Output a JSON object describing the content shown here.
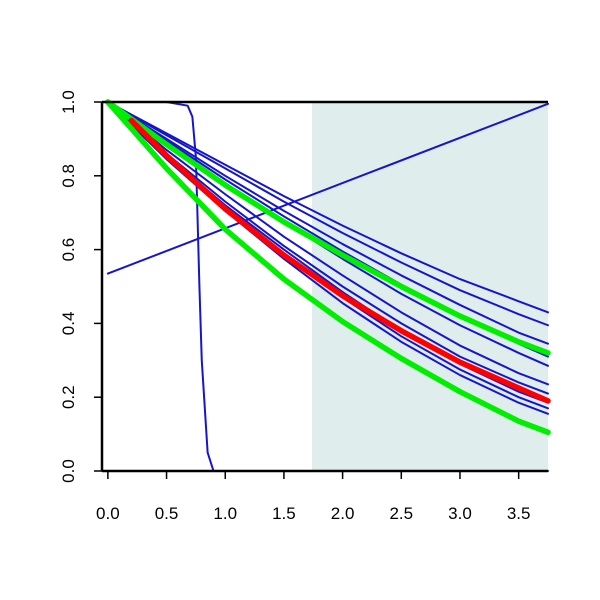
{
  "chart_data": {
    "type": "line",
    "title": "",
    "xlabel": "",
    "ylabel": "",
    "xlim": [
      -0.05,
      3.75
    ],
    "ylim": [
      0.0,
      1.0
    ],
    "x_ticks": [
      0.0,
      0.5,
      1.0,
      1.5,
      2.0,
      2.5,
      3.0,
      3.5
    ],
    "x_tick_labels": [
      "0.0",
      "0.5",
      "1.0",
      "1.5",
      "2.0",
      "2.5",
      "3.0",
      "3.5"
    ],
    "y_ticks": [
      0.0,
      0.2,
      0.4,
      0.6,
      0.8,
      1.0
    ],
    "y_tick_labels": [
      "0.0",
      "0.2",
      "0.4",
      "0.6",
      "0.8",
      "1.0"
    ],
    "grid": false,
    "shaded_region": {
      "x_from": 1.74,
      "x_to": 3.75,
      "color": "#e0eded"
    },
    "colors": {
      "blue": "#1515cc",
      "red": "#ff0000",
      "green": "#00ee00"
    },
    "series": [
      {
        "color": "blue",
        "weight": "thin",
        "x": [
          0,
          0.5,
          0.68,
          0.72,
          0.75,
          0.78,
          0.8,
          0.85,
          0.9,
          3.75
        ],
        "y": [
          1.0,
          1.0,
          0.99,
          0.96,
          0.85,
          0.5,
          0.3,
          0.05,
          0.0,
          0.0
        ]
      },
      {
        "color": "blue",
        "weight": "thin",
        "x": [
          0,
          3.75
        ],
        "y": [
          0.535,
          0.995
        ]
      },
      {
        "color": "blue",
        "weight": "thin",
        "x": [
          0,
          0.5,
          1.0,
          1.5,
          2.0,
          2.5,
          3.0,
          3.5,
          3.75
        ],
        "y": [
          1.0,
          0.915,
          0.83,
          0.745,
          0.665,
          0.59,
          0.52,
          0.46,
          0.43
        ]
      },
      {
        "color": "blue",
        "weight": "thin",
        "x": [
          0,
          0.5,
          1.0,
          1.5,
          2.0,
          2.5,
          3.0,
          3.5,
          3.75
        ],
        "y": [
          1.0,
          0.91,
          0.82,
          0.73,
          0.645,
          0.565,
          0.49,
          0.425,
          0.395
        ]
      },
      {
        "color": "blue",
        "weight": "thin",
        "x": [
          0,
          0.5,
          1.0,
          1.5,
          2.0,
          2.5,
          3.0,
          3.5,
          3.75
        ],
        "y": [
          1.0,
          0.9,
          0.8,
          0.705,
          0.615,
          0.53,
          0.45,
          0.375,
          0.345
        ]
      },
      {
        "color": "blue",
        "weight": "thin",
        "x": [
          0,
          0.5,
          1.0,
          1.5,
          2.0,
          2.5,
          3.0,
          3.5,
          3.75
        ],
        "y": [
          1.0,
          0.895,
          0.79,
          0.69,
          0.595,
          0.505,
          0.42,
          0.345,
          0.31
        ]
      },
      {
        "color": "blue",
        "weight": "thin",
        "x": [
          0,
          0.5,
          1.0,
          1.5,
          2.0,
          2.5,
          3.0,
          3.5,
          3.75
        ],
        "y": [
          1.0,
          0.89,
          0.78,
          0.675,
          0.575,
          0.48,
          0.395,
          0.32,
          0.285
        ]
      },
      {
        "color": "blue",
        "weight": "thin",
        "x": [
          0,
          0.5,
          1.0,
          1.5,
          2.0,
          2.5,
          3.0,
          3.5,
          3.75
        ],
        "y": [
          1.0,
          0.87,
          0.75,
          0.635,
          0.53,
          0.43,
          0.34,
          0.265,
          0.235
        ]
      },
      {
        "color": "blue",
        "weight": "thin",
        "x": [
          0,
          0.5,
          1.0,
          1.5,
          2.0,
          2.5,
          3.0,
          3.5,
          3.75
        ],
        "y": [
          1.0,
          0.86,
          0.73,
          0.61,
          0.5,
          0.4,
          0.31,
          0.24,
          0.21
        ]
      },
      {
        "color": "blue",
        "weight": "thin",
        "x": [
          0,
          0.5,
          1.0,
          1.5,
          2.0,
          2.5,
          3.0,
          3.5,
          3.75
        ],
        "y": [
          1.0,
          0.855,
          0.72,
          0.6,
          0.485,
          0.38,
          0.29,
          0.215,
          0.185
        ]
      },
      {
        "color": "blue",
        "weight": "thin",
        "x": [
          0,
          0.5,
          1.0,
          1.5,
          2.0,
          2.5,
          3.0,
          3.5,
          3.75
        ],
        "y": [
          1.0,
          0.85,
          0.71,
          0.585,
          0.47,
          0.365,
          0.275,
          0.2,
          0.17
        ]
      },
      {
        "color": "blue",
        "weight": "thin",
        "x": [
          0,
          0.5,
          1.0,
          1.5,
          2.0,
          2.5,
          3.0,
          3.5,
          3.75
        ],
        "y": [
          1.0,
          0.845,
          0.705,
          0.575,
          0.455,
          0.35,
          0.26,
          0.185,
          0.155
        ]
      },
      {
        "color": "green",
        "weight": "thick",
        "x": [
          0,
          0.5,
          1.0,
          1.5,
          2.0,
          2.5,
          3.0,
          3.5,
          3.75
        ],
        "y": [
          1.0,
          0.885,
          0.775,
          0.675,
          0.585,
          0.5,
          0.42,
          0.35,
          0.32
        ]
      },
      {
        "color": "red",
        "weight": "thick",
        "x": [
          0.2,
          0.5,
          1.0,
          1.5,
          2.0,
          2.5,
          3.0,
          3.5,
          3.75
        ],
        "y": [
          0.95,
          0.855,
          0.71,
          0.585,
          0.475,
          0.38,
          0.295,
          0.225,
          0.19
        ]
      },
      {
        "color": "green",
        "weight": "thick",
        "x": [
          0,
          0.5,
          1.0,
          1.5,
          2.0,
          2.5,
          3.0,
          3.5,
          3.75
        ],
        "y": [
          1.0,
          0.82,
          0.655,
          0.52,
          0.405,
          0.305,
          0.215,
          0.135,
          0.105
        ]
      }
    ]
  }
}
